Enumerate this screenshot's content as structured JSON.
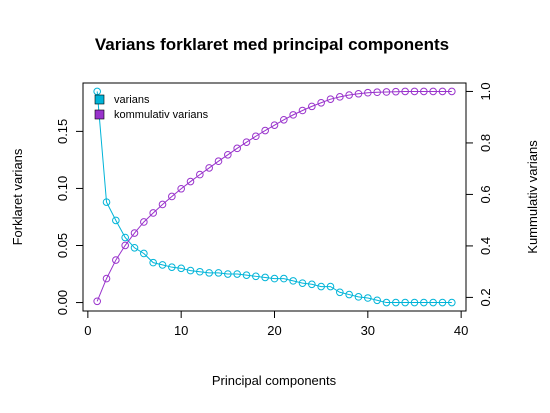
{
  "chart_data": {
    "type": "line",
    "title": "Varians forklaret med principal components",
    "xlabel": "Principal components",
    "ylabel_left": "Forklaret varians",
    "ylabel_right": "Kummulativ varians",
    "xlim": [
      0,
      40
    ],
    "ylim_left": [
      0,
      0.185
    ],
    "ylim_right": [
      0.18,
      1.0
    ],
    "grid": false,
    "legend_position": "top-left",
    "x_ticks": [
      0,
      10,
      20,
      30,
      40
    ],
    "x_tick_labels": [
      "0",
      "10",
      "20",
      "30",
      "40"
    ],
    "y_left_ticks": [
      0.0,
      0.05,
      0.1,
      0.15
    ],
    "y_left_tick_labels": [
      "0.00",
      "0.05",
      "0.10",
      "0.15"
    ],
    "y_right_ticks": [
      0.2,
      0.4,
      0.6,
      0.8,
      1.0
    ],
    "y_right_tick_labels": [
      "0.2",
      "0.4",
      "0.6",
      "0.8",
      "1.0"
    ],
    "x": [
      1,
      2,
      3,
      4,
      5,
      6,
      7,
      8,
      9,
      10,
      11,
      12,
      13,
      14,
      15,
      16,
      17,
      18,
      19,
      20,
      21,
      22,
      23,
      24,
      25,
      26,
      27,
      28,
      29,
      30,
      31,
      32,
      33,
      34,
      35,
      36,
      37,
      38,
      39
    ],
    "series": [
      {
        "name": "varians",
        "axis": "left",
        "color": "#00b4d8",
        "values": [
          0.185,
          0.088,
          0.072,
          0.057,
          0.048,
          0.043,
          0.035,
          0.033,
          0.031,
          0.03,
          0.028,
          0.027,
          0.026,
          0.026,
          0.025,
          0.025,
          0.024,
          0.023,
          0.022,
          0.021,
          0.021,
          0.019,
          0.017,
          0.016,
          0.014,
          0.014,
          0.009,
          0.007,
          0.005,
          0.004,
          0.002,
          0.0,
          0.0,
          0.0,
          0.0,
          0.0,
          0.0,
          0.0,
          0.0
        ]
      },
      {
        "name": "kommulativ varians",
        "axis": "right",
        "color": "#9933cc",
        "values": [
          0.185,
          0.273,
          0.345,
          0.402,
          0.45,
          0.493,
          0.528,
          0.561,
          0.592,
          0.622,
          0.65,
          0.677,
          0.703,
          0.729,
          0.754,
          0.779,
          0.803,
          0.826,
          0.848,
          0.869,
          0.89,
          0.909,
          0.926,
          0.942,
          0.956,
          0.97,
          0.979,
          0.986,
          0.991,
          0.995,
          0.997,
          0.998,
          0.999,
          1.0,
          1.0,
          1.0,
          1.0,
          1.0,
          1.0
        ]
      }
    ]
  }
}
